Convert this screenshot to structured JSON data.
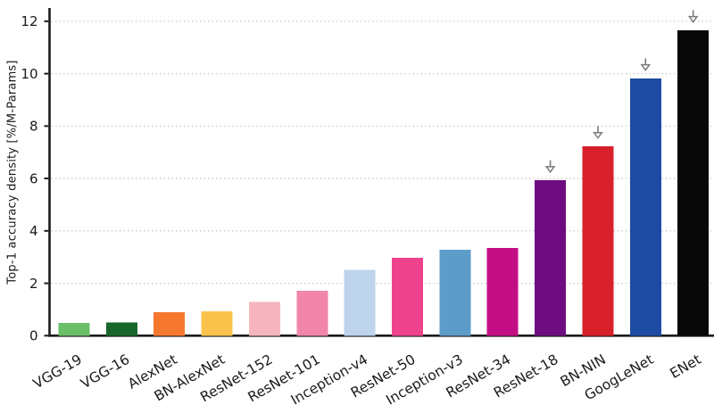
{
  "figure": {
    "background": "#ffffff"
  },
  "chart_data": {
    "type": "bar",
    "title": "",
    "xlabel": "",
    "ylabel": "Top-1 accuracy density [%/M-Params]",
    "categories": [
      "VGG-19",
      "VGG-16",
      "AlexNet",
      "BN-AlexNet",
      "ResNet-152",
      "ResNet-101",
      "Inception-v4",
      "ResNet-50",
      "Inception-v3",
      "ResNet-34",
      "ResNet-18",
      "BN-NIN",
      "GoogLeNet",
      "ENet"
    ],
    "values": [
      0.49,
      0.51,
      0.89,
      0.93,
      1.29,
      1.71,
      2.51,
      2.97,
      3.28,
      3.34,
      5.93,
      7.23,
      9.82,
      11.66
    ],
    "bar_colors": [
      "#6abf69",
      "#17672d",
      "#f5782e",
      "#fac34c",
      "#f5b5bf",
      "#f186aa",
      "#bdd4ec",
      "#ee428d",
      "#5b9cc9",
      "#c30e83",
      "#6e0b80",
      "#d8202a",
      "#1d4ba4",
      "#080808"
    ],
    "ylim": [
      0,
      12.5
    ],
    "yticks": [
      0,
      2,
      4,
      6,
      8,
      10,
      12
    ],
    "x_tick_rotation_deg": 30,
    "grid": "horizontal-dotted",
    "legend": "none",
    "annotations": {
      "down_arrow_bars": [
        "ResNet-18",
        "BN-NIN",
        "GoogLeNet",
        "ENet"
      ],
      "arrow_icon": "open-down-arrow",
      "arrow_color": "#7a7a7a"
    },
    "axis_color": "#1a1a1a",
    "grid_color": "#c9c9c9",
    "tick_label_color": "#1a1a1a"
  }
}
